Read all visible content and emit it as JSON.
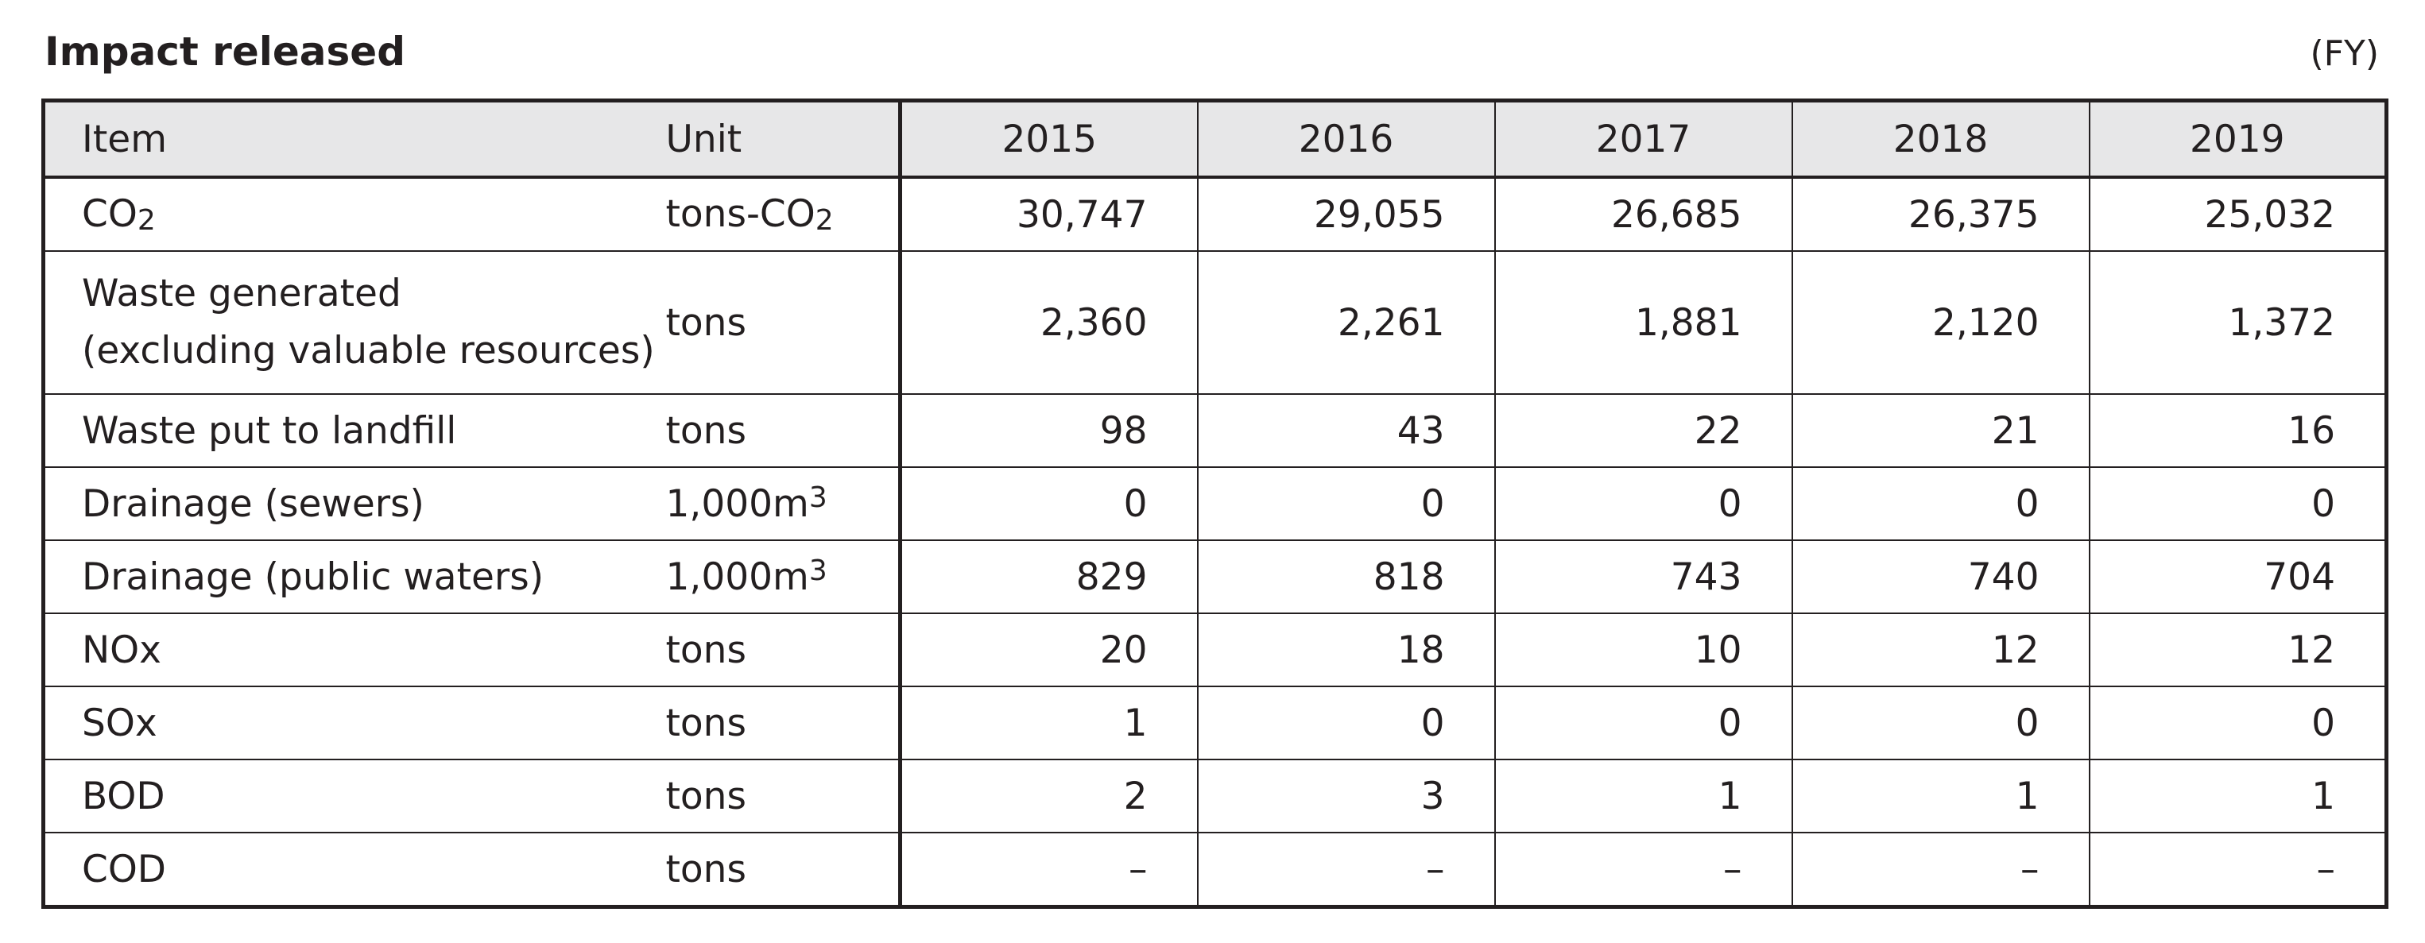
{
  "title": "Impact released",
  "fiscal_note": "(FY)",
  "header": {
    "item": "Item",
    "unit": "Unit",
    "years": [
      "2015",
      "2016",
      "2017",
      "2018",
      "2019"
    ]
  },
  "rows": [
    {
      "item": "CO",
      "item_sub": "2",
      "unit": "tons-CO",
      "unit_sub": "2",
      "values": [
        "30,747",
        "29,055",
        "26,685",
        "26,375",
        "25,032"
      ]
    },
    {
      "item_line1": "Waste generated",
      "item_line2": "(excluding valuable resources)",
      "unit": "tons",
      "values": [
        "2,360",
        "2,261",
        "1,881",
        "2,120",
        "1,372"
      ]
    },
    {
      "item": "Waste put to landfill",
      "unit": "tons",
      "values": [
        "98",
        "43",
        "22",
        "21",
        "16"
      ]
    },
    {
      "item": "Drainage (sewers)",
      "unit": "1,000m",
      "unit_sup": "3",
      "values": [
        "0",
        "0",
        "0",
        "0",
        "0"
      ]
    },
    {
      "item": "Drainage (public waters)",
      "unit": "1,000m",
      "unit_sup": "3",
      "values": [
        "829",
        "818",
        "743",
        "740",
        "704"
      ]
    },
    {
      "item": "NOx",
      "unit": "tons",
      "values": [
        "20",
        "18",
        "10",
        "12",
        "12"
      ]
    },
    {
      "item": "SOx",
      "unit": "tons",
      "values": [
        "1",
        "0",
        "0",
        "0",
        "0"
      ]
    },
    {
      "item": "BOD",
      "unit": "tons",
      "values": [
        "2",
        "3",
        "1",
        "1",
        "1"
      ]
    },
    {
      "item": "COD",
      "unit": "tons",
      "values": [
        "–",
        "–",
        "–",
        "–",
        "–"
      ]
    }
  ]
}
